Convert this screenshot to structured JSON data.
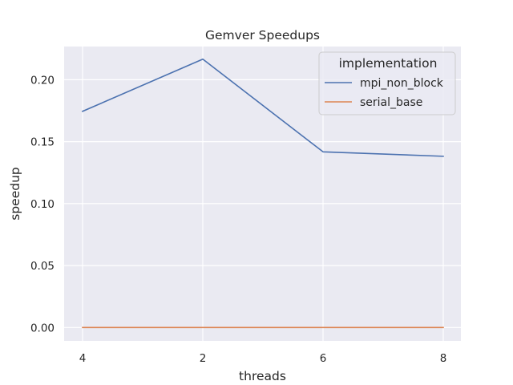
{
  "chart_data": {
    "type": "line",
    "title": "Gemver Speedups",
    "xlabel": "threads",
    "ylabel": "speedup",
    "categories": [
      "4",
      "2",
      "6",
      "8"
    ],
    "ylim": [
      -0.0108,
      0.2268
    ],
    "yticks": [
      "0.00",
      "0.05",
      "0.10",
      "0.15",
      "0.20"
    ],
    "grid": true,
    "legend": {
      "title": "implementation",
      "placement": "top-right"
    },
    "series": [
      {
        "name": "mpi_non_block",
        "color": "#4c72b0",
        "values": [
          0.1745,
          0.2166,
          0.1418,
          0.1382
        ]
      },
      {
        "name": "serial_base",
        "color": "#dd8452",
        "values": [
          0.0,
          0.0,
          0.0,
          0.0
        ]
      }
    ]
  }
}
